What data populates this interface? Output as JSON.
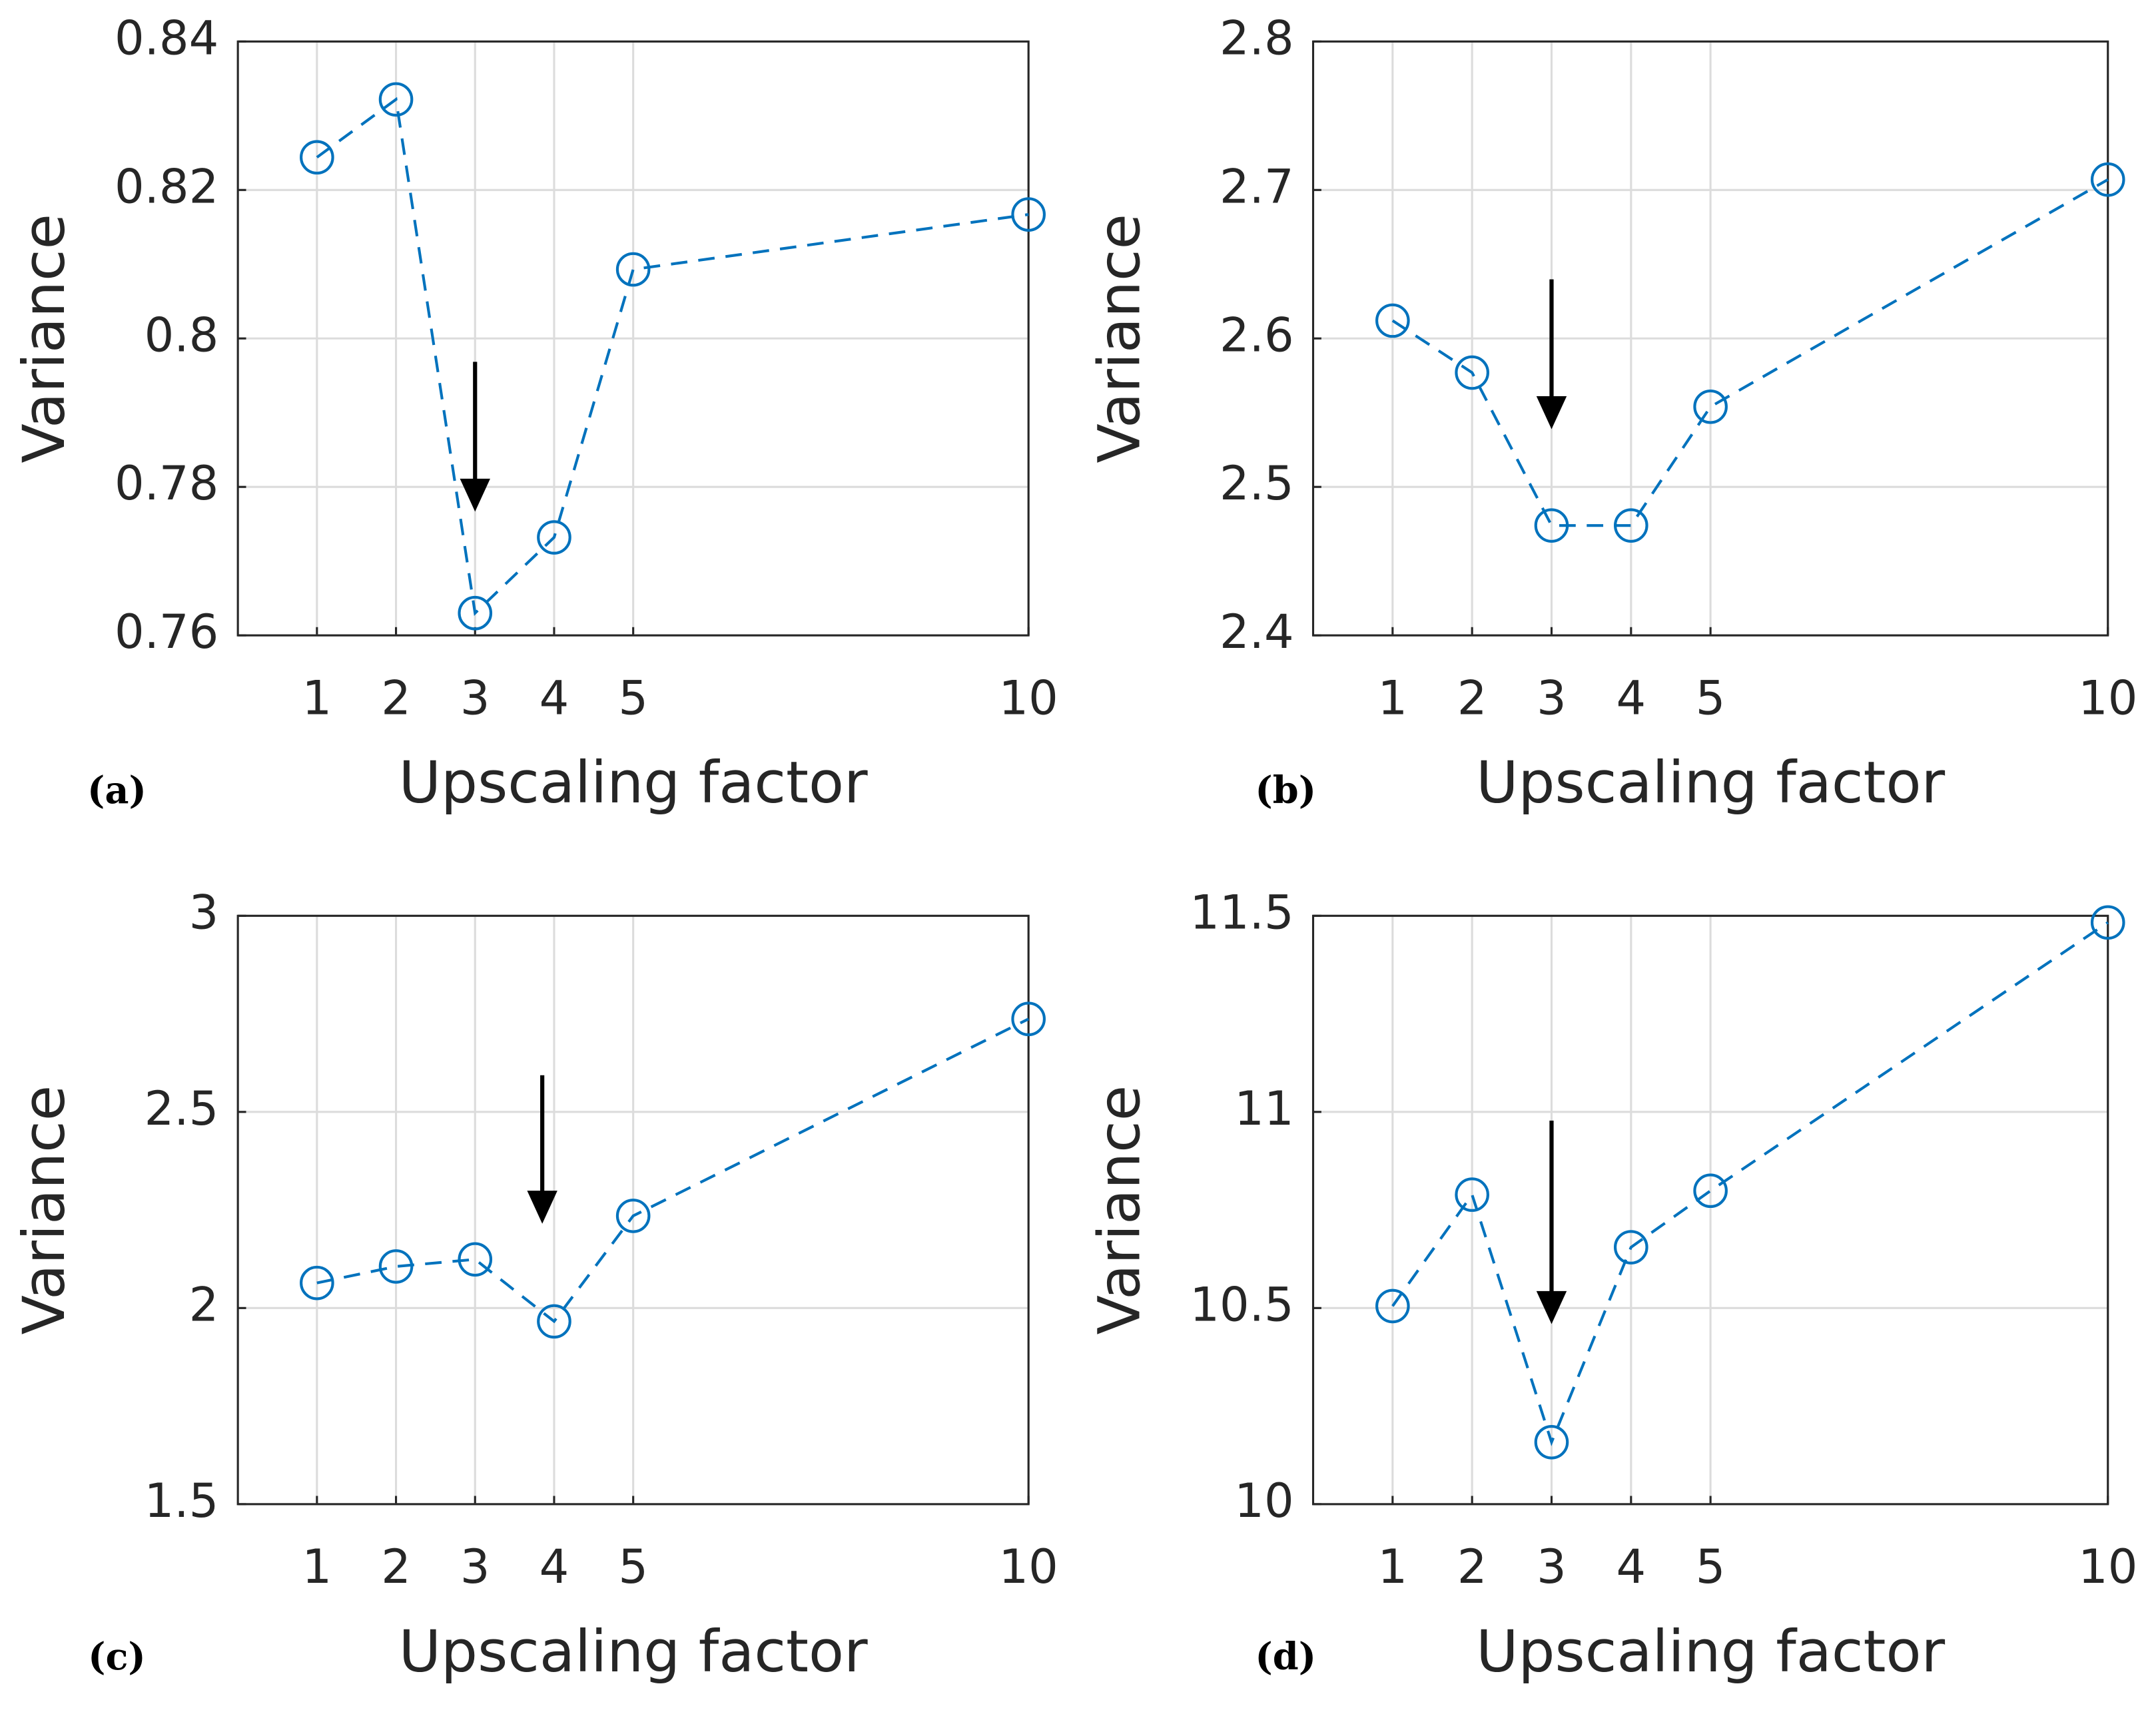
{
  "chart_data": [
    {
      "type": "line",
      "panel_label": "(a)",
      "xlabel": "Upscaling factor",
      "ylabel": "Variance",
      "x": [
        1,
        2,
        3,
        4,
        5,
        10
      ],
      "values": [
        0.8244,
        0.8322,
        0.763,
        0.7732,
        0.8093,
        0.8167
      ],
      "color": "#0072bd",
      "linestyle": "dashed",
      "marker": "circle",
      "grid": true,
      "xlim": [
        0,
        10
      ],
      "xticks": [
        1,
        2,
        3,
        4,
        5,
        10
      ],
      "ylim": [
        0.76,
        0.84
      ],
      "yticks": [
        0.76,
        0.78,
        0.8,
        0.82,
        0.84
      ]
    },
    {
      "type": "line",
      "panel_label": "(b)",
      "xlabel": "Upscaling factor",
      "ylabel": "Variance",
      "x": [
        1,
        2,
        3,
        4,
        5,
        10
      ],
      "values": [
        2.612,
        2.577,
        2.474,
        2.474,
        2.554,
        2.707
      ],
      "color": "#0072bd",
      "linestyle": "dashed",
      "marker": "circle",
      "grid": true,
      "xlim": [
        0,
        10
      ],
      "xticks": [
        1,
        2,
        3,
        4,
        5,
        10
      ],
      "ylim": [
        2.4,
        2.8
      ],
      "yticks": [
        2.4,
        2.5,
        2.6,
        2.7,
        2.8
      ]
    },
    {
      "type": "line",
      "panel_label": "(c)",
      "xlabel": "Upscaling factor",
      "ylabel": "Variance",
      "x": [
        1,
        2,
        3,
        4,
        5,
        10
      ],
      "values": [
        2.064,
        2.106,
        2.124,
        1.966,
        2.235,
        2.737
      ],
      "color": "#0072bd",
      "linestyle": "dashed",
      "marker": "circle",
      "grid": true,
      "xlim": [
        0,
        10
      ],
      "xticks": [
        1,
        2,
        3,
        4,
        5,
        10
      ],
      "ylim": [
        1.5,
        3
      ],
      "yticks": [
        1.5,
        2,
        2.5,
        3
      ]
    },
    {
      "type": "line",
      "panel_label": "(d)",
      "xlabel": "Upscaling factor",
      "ylabel": "Variance",
      "x": [
        1,
        2,
        3,
        4,
        5,
        10
      ],
      "values": [
        10.505,
        10.789,
        10.158,
        10.655,
        10.799,
        11.483
      ],
      "color": "#0072bd",
      "linestyle": "dashed",
      "marker": "circle",
      "grid": true,
      "xlim": [
        0,
        10
      ],
      "xticks": [
        1,
        2,
        3,
        4,
        5,
        10
      ],
      "ylim": [
        10,
        11.5
      ],
      "yticks": [
        10,
        10.5,
        11,
        11.5
      ]
    }
  ]
}
